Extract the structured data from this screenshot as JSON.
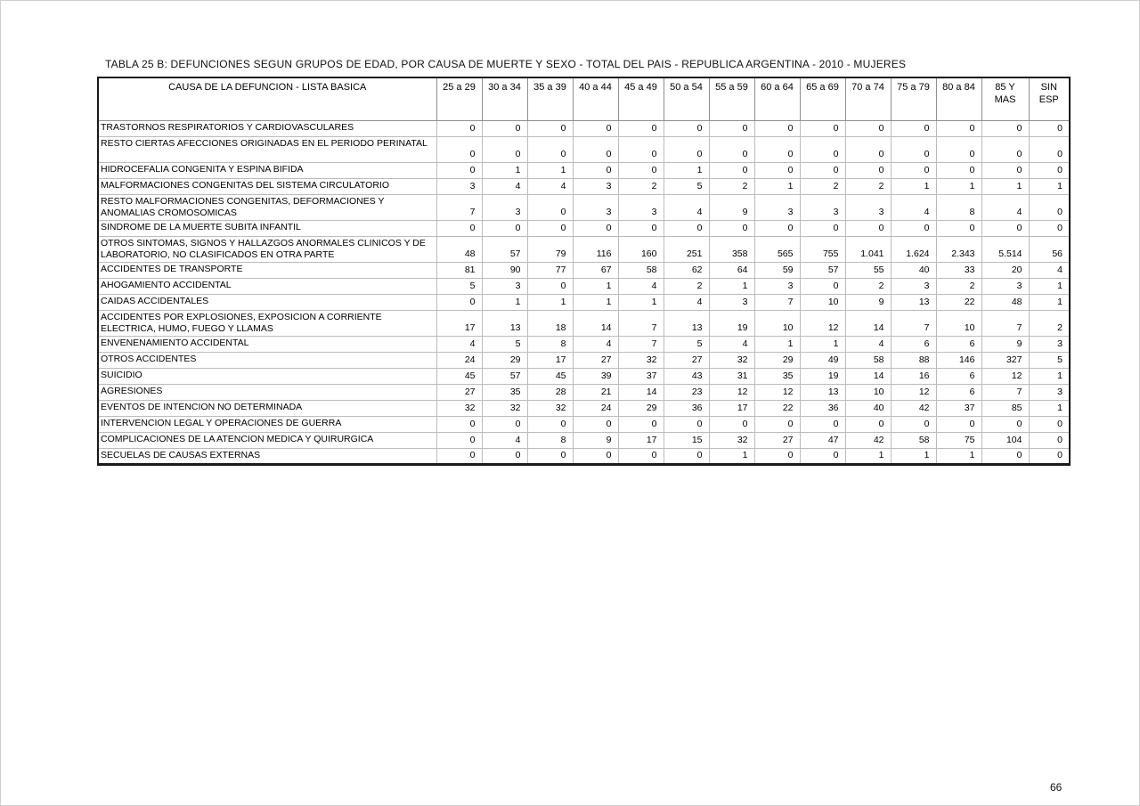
{
  "document": {
    "title": "TABLA 25 B: DEFUNCIONES SEGUN GRUPOS DE EDAD, POR CAUSA DE MUERTE Y SEXO - TOTAL DEL PAIS - REPUBLICA ARGENTINA - 2010 - MUJERES",
    "page_number": "66"
  },
  "table": {
    "cause_column_header": "CAUSA DE LA DEFUNCION - LISTA BASICA",
    "age_columns": [
      "25 a 29",
      "30 a 34",
      "35 a 39",
      "40 a 44",
      "45 a 49",
      "50 a 54",
      "55 a 59",
      "60 a 64",
      "65 a 69",
      "70 a 74",
      "75 a 79",
      "80 a 84",
      "85 Y\nMAS",
      "SIN\nESP"
    ],
    "rows": [
      {
        "cause": "TRASTORNOS RESPIRATORIOS Y CARDIOVASCULARES",
        "values": [
          "0",
          "0",
          "0",
          "0",
          "0",
          "0",
          "0",
          "0",
          "0",
          "0",
          "0",
          "0",
          "0",
          "0"
        ]
      },
      {
        "cause": "RESTO CIERTAS AFECCIONES ORIGINADAS EN EL PERIODO PERINATAL",
        "values": [
          "0",
          "0",
          "0",
          "0",
          "0",
          "0",
          "0",
          "0",
          "0",
          "0",
          "0",
          "0",
          "0",
          "0"
        ]
      },
      {
        "cause": "HIDROCEFALIA CONGENITA Y ESPINA BIFIDA",
        "values": [
          "0",
          "1",
          "1",
          "0",
          "0",
          "1",
          "0",
          "0",
          "0",
          "0",
          "0",
          "0",
          "0",
          "0"
        ]
      },
      {
        "cause": "MALFORMACIONES CONGENITAS DEL SISTEMA CIRCULATORIO",
        "values": [
          "3",
          "4",
          "4",
          "3",
          "2",
          "5",
          "2",
          "1",
          "2",
          "2",
          "1",
          "1",
          "1",
          "1"
        ]
      },
      {
        "cause": "RESTO MALFORMACIONES CONGENITAS, DEFORMACIONES Y\nANOMALIAS CROMOSOMICAS",
        "values": [
          "7",
          "3",
          "0",
          "3",
          "3",
          "4",
          "9",
          "3",
          "3",
          "3",
          "4",
          "8",
          "4",
          "0"
        ]
      },
      {
        "cause": "SINDROME DE LA MUERTE SUBITA INFANTIL",
        "values": [
          "0",
          "0",
          "0",
          "0",
          "0",
          "0",
          "0",
          "0",
          "0",
          "0",
          "0",
          "0",
          "0",
          "0"
        ]
      },
      {
        "cause": "OTROS SINTOMAS, SIGNOS Y HALLAZGOS ANORMALES CLINICOS Y DE\nLABORATORIO, NO CLASIFICADOS EN OTRA PARTE",
        "values": [
          "48",
          "57",
          "79",
          "116",
          "160",
          "251",
          "358",
          "565",
          "755",
          "1.041",
          "1.624",
          "2.343",
          "5.514",
          "56"
        ]
      },
      {
        "cause": "ACCIDENTES DE TRANSPORTE",
        "values": [
          "81",
          "90",
          "77",
          "67",
          "58",
          "62",
          "64",
          "59",
          "57",
          "55",
          "40",
          "33",
          "20",
          "4"
        ]
      },
      {
        "cause": "AHOGAMIENTO ACCIDENTAL",
        "values": [
          "5",
          "3",
          "0",
          "1",
          "4",
          "2",
          "1",
          "3",
          "0",
          "2",
          "3",
          "2",
          "3",
          "1"
        ]
      },
      {
        "cause": "CAIDAS ACCIDENTALES",
        "values": [
          "0",
          "1",
          "1",
          "1",
          "1",
          "4",
          "3",
          "7",
          "10",
          "9",
          "13",
          "22",
          "48",
          "1"
        ]
      },
      {
        "cause": "ACCIDENTES POR EXPLOSIONES, EXPOSICION A CORRIENTE\nELECTRICA, HUMO, FUEGO Y LLAMAS",
        "values": [
          "17",
          "13",
          "18",
          "14",
          "7",
          "13",
          "19",
          "10",
          "12",
          "14",
          "7",
          "10",
          "7",
          "2"
        ]
      },
      {
        "cause": "ENVENENAMIENTO ACCIDENTAL",
        "values": [
          "4",
          "5",
          "8",
          "4",
          "7",
          "5",
          "4",
          "1",
          "1",
          "4",
          "6",
          "6",
          "9",
          "3"
        ]
      },
      {
        "cause": "OTROS ACCIDENTES",
        "values": [
          "24",
          "29",
          "17",
          "27",
          "32",
          "27",
          "32",
          "29",
          "49",
          "58",
          "88",
          "146",
          "327",
          "5"
        ]
      },
      {
        "cause": "SUICIDIO",
        "values": [
          "45",
          "57",
          "45",
          "39",
          "37",
          "43",
          "31",
          "35",
          "19",
          "14",
          "16",
          "6",
          "12",
          "1"
        ]
      },
      {
        "cause": "AGRESIONES",
        "values": [
          "27",
          "35",
          "28",
          "21",
          "14",
          "23",
          "12",
          "12",
          "13",
          "10",
          "12",
          "6",
          "7",
          "3"
        ]
      },
      {
        "cause": "EVENTOS DE INTENCION NO DETERMINADA",
        "values": [
          "32",
          "32",
          "32",
          "24",
          "29",
          "36",
          "17",
          "22",
          "36",
          "40",
          "42",
          "37",
          "85",
          "1"
        ]
      },
      {
        "cause": "INTERVENCION LEGAL Y OPERACIONES DE GUERRA",
        "values": [
          "0",
          "0",
          "0",
          "0",
          "0",
          "0",
          "0",
          "0",
          "0",
          "0",
          "0",
          "0",
          "0",
          "0"
        ]
      },
      {
        "cause": "COMPLICACIONES DE LA ATENCION MEDICA Y QUIRURGICA",
        "values": [
          "0",
          "4",
          "8",
          "9",
          "17",
          "15",
          "32",
          "27",
          "47",
          "42",
          "58",
          "75",
          "104",
          "0"
        ]
      },
      {
        "cause": "SECUELAS DE CAUSAS EXTERNAS",
        "values": [
          "0",
          "0",
          "0",
          "0",
          "0",
          "0",
          "1",
          "0",
          "0",
          "1",
          "1",
          "1",
          "0",
          "0"
        ]
      }
    ]
  }
}
